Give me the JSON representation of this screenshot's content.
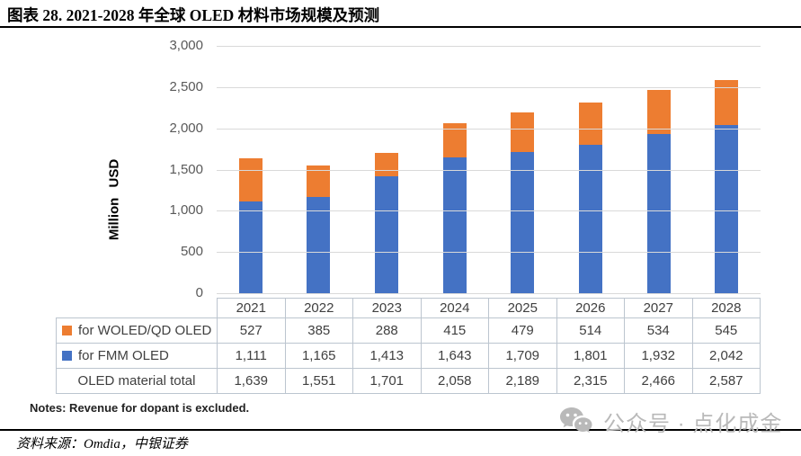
{
  "header": {
    "title": "图表 28. 2021-2028 年全球 OLED 材料市场规模及预测"
  },
  "chart_data": {
    "type": "bar",
    "stacked": true,
    "title": "图表 28. 2021-2028 年全球 OLED 材料市场规模及预测",
    "xlabel": "",
    "ylabel": "Million USD",
    "ylim": [
      0,
      3000
    ],
    "ytick_interval": 500,
    "grid": true,
    "legend_position": "left column of attached data table",
    "categories": [
      "2021",
      "2022",
      "2023",
      "2024",
      "2025",
      "2026",
      "2027",
      "2028"
    ],
    "series": [
      {
        "name": "for WOLED/QD OLED",
        "color": "#ED7D31",
        "values": [
          527,
          385,
          288,
          415,
          479,
          514,
          534,
          545
        ]
      },
      {
        "name": "for FMM OLED",
        "color": "#4472C4",
        "values": [
          1111,
          1165,
          1413,
          1643,
          1709,
          1801,
          1932,
          2042
        ]
      }
    ],
    "total_row": {
      "label": "OLED material total",
      "values": [
        1639,
        1551,
        1701,
        2058,
        2189,
        2315,
        2466,
        2587
      ]
    }
  },
  "notes": "Notes: Revenue for dopant is excluded.",
  "source": "资料来源：Omdia，中银证券",
  "watermark": {
    "icon": "wechat-icon",
    "text": "公众号 · 点化成金"
  },
  "colors": {
    "bar_blue": "#4472C4",
    "bar_orange": "#ED7D31",
    "gridline": "#D9D9D9",
    "table_border": "#BCC5CF",
    "axis_text": "#595959",
    "table_text": "#404040",
    "watermark": "#B9B9B9"
  }
}
